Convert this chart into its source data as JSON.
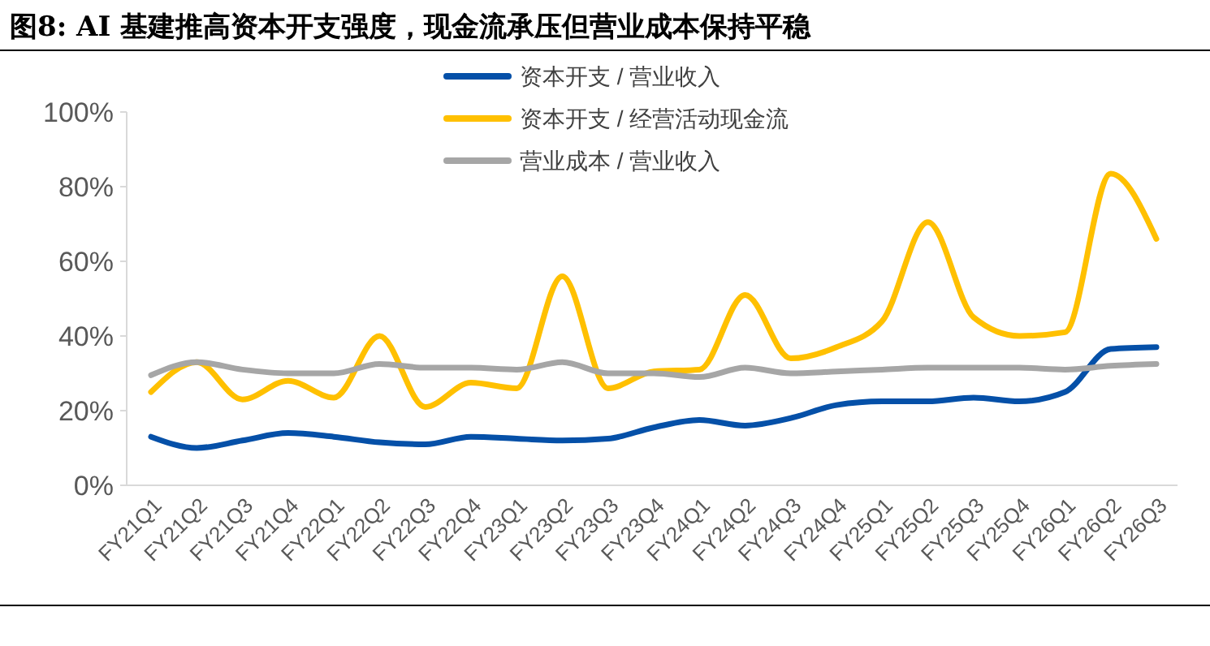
{
  "chart_data": {
    "type": "line",
    "title": "图8: AI 基建推高资本开支强度，现金流承压但营业成本保持平稳",
    "categories": [
      "FY21Q1",
      "FY21Q2",
      "FY21Q3",
      "FY21Q4",
      "FY22Q1",
      "FY22Q2",
      "FY22Q3",
      "FY22Q4",
      "FY23Q1",
      "FY23Q2",
      "FY23Q3",
      "FY23Q4",
      "FY24Q1",
      "FY24Q2",
      "FY24Q3",
      "FY24Q4",
      "FY25Q1",
      "FY25Q2",
      "FY25Q3",
      "FY25Q4",
      "FY26Q1",
      "FY26Q2",
      "FY26Q3"
    ],
    "series": [
      {
        "name": "资本开支 / 营业收入",
        "color": "#0550a8",
        "values": [
          13,
          10,
          12,
          14,
          13,
          11.5,
          11,
          13,
          12.5,
          12,
          12.5,
          15.5,
          17.5,
          16,
          18,
          21.5,
          22.5,
          22.5,
          23.5,
          22.5,
          25,
          36.5,
          37
        ]
      },
      {
        "name": "资本开支 / 经营活动现金流",
        "color": "#ffc000",
        "values": [
          25,
          33,
          23,
          28,
          23.5,
          40,
          21,
          27.5,
          26,
          56,
          26,
          30.5,
          31,
          51,
          34,
          37,
          44,
          70.5,
          45,
          40,
          41,
          83.5,
          66
        ]
      },
      {
        "name": "营业成本 / 营业收入",
        "color": "#a6a6a6",
        "values": [
          29.5,
          33,
          31,
          30,
          30,
          32.5,
          31.5,
          31.5,
          31,
          33,
          30,
          30,
          29,
          31.5,
          30,
          30.5,
          31,
          31.5,
          31.5,
          31.5,
          31,
          32,
          32.5
        ]
      }
    ],
    "ylim": [
      0,
      100
    ],
    "yticks": [
      {
        "value": 0,
        "label": "0%"
      },
      {
        "value": 20,
        "label": "20%"
      },
      {
        "value": 40,
        "label": "40%"
      },
      {
        "value": 60,
        "label": "60%"
      },
      {
        "value": 80,
        "label": "80%"
      },
      {
        "value": 100,
        "label": "100%"
      }
    ],
    "grid": false,
    "legend": "top",
    "line_style": "solid",
    "marker": "none"
  }
}
